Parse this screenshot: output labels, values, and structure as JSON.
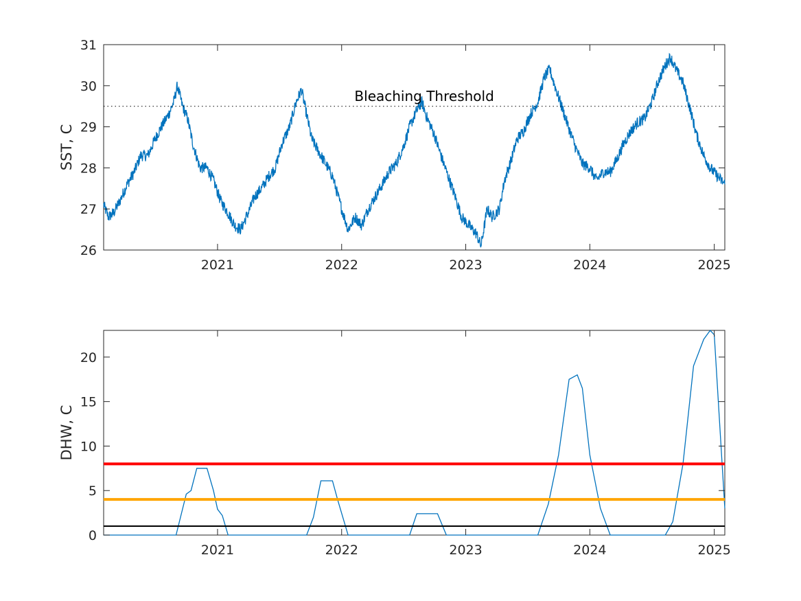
{
  "chart_data": [
    {
      "type": "line",
      "ylabel": "SST, C",
      "xlim": [
        "2020-02-01",
        "2025-02-01"
      ],
      "ylim": [
        26,
        31
      ],
      "xticks": [
        {
          "date": "2021-01-01",
          "label": "2021"
        },
        {
          "date": "2022-01-01",
          "label": "2022"
        },
        {
          "date": "2023-01-01",
          "label": "2023"
        },
        {
          "date": "2024-01-01",
          "label": "2024"
        },
        {
          "date": "2025-01-01",
          "label": "2025"
        }
      ],
      "yticks": [
        26,
        27,
        28,
        29,
        30,
        31
      ],
      "grid": false,
      "series": [
        {
          "color": "#0072BD",
          "points": [
            [
              "2020-02-01",
              27.1
            ],
            [
              "2020-02-15",
              26.8
            ],
            [
              "2020-03-01",
              26.9
            ],
            [
              "2020-03-20",
              27.2
            ],
            [
              "2020-04-10",
              27.6
            ],
            [
              "2020-05-01",
              27.9
            ],
            [
              "2020-05-20",
              28.3
            ],
            [
              "2020-06-10",
              28.3
            ],
            [
              "2020-07-01",
              28.7
            ],
            [
              "2020-07-20",
              29.0
            ],
            [
              "2020-08-10",
              29.3
            ],
            [
              "2020-08-25",
              29.6
            ],
            [
              "2020-09-05",
              30.0
            ],
            [
              "2020-09-20",
              29.5
            ],
            [
              "2020-10-05",
              29.2
            ],
            [
              "2020-10-20",
              28.6
            ],
            [
              "2020-11-10",
              28.0
            ],
            [
              "2020-12-01",
              28.0
            ],
            [
              "2020-12-20",
              27.7
            ],
            [
              "2021-01-10",
              27.2
            ],
            [
              "2021-02-01",
              26.9
            ],
            [
              "2021-02-20",
              26.6
            ],
            [
              "2021-03-10",
              26.5
            ],
            [
              "2021-04-01",
              26.9
            ],
            [
              "2021-04-20",
              27.3
            ],
            [
              "2021-05-10",
              27.5
            ],
            [
              "2021-06-01",
              27.8
            ],
            [
              "2021-06-20",
              28.0
            ],
            [
              "2021-07-10",
              28.6
            ],
            [
              "2021-08-01",
              29.0
            ],
            [
              "2021-08-20",
              29.6
            ],
            [
              "2021-09-05",
              29.9
            ],
            [
              "2021-09-20",
              29.3
            ],
            [
              "2021-10-05",
              28.7
            ],
            [
              "2021-10-25",
              28.4
            ],
            [
              "2021-11-15",
              28.1
            ],
            [
              "2021-12-05",
              27.8
            ],
            [
              "2022-01-01",
              27.0
            ],
            [
              "2022-01-20",
              26.5
            ],
            [
              "2022-02-10",
              26.8
            ],
            [
              "2022-03-01",
              26.6
            ],
            [
              "2022-03-20",
              27.0
            ],
            [
              "2022-04-10",
              27.3
            ],
            [
              "2022-05-01",
              27.6
            ],
            [
              "2022-05-20",
              27.9
            ],
            [
              "2022-06-10",
              28.1
            ],
            [
              "2022-07-01",
              28.5
            ],
            [
              "2022-07-20",
              29.0
            ],
            [
              "2022-08-10",
              29.4
            ],
            [
              "2022-08-25",
              29.6
            ],
            [
              "2022-09-10",
              29.2
            ],
            [
              "2022-10-01",
              28.8
            ],
            [
              "2022-10-20",
              28.3
            ],
            [
              "2022-11-10",
              27.8
            ],
            [
              "2022-12-01",
              27.3
            ],
            [
              "2022-12-20",
              26.8
            ],
            [
              "2023-01-10",
              26.6
            ],
            [
              "2023-02-01",
              26.4
            ],
            [
              "2023-02-15",
              26.1
            ],
            [
              "2023-03-05",
              27.0
            ],
            [
              "2023-03-20",
              26.8
            ],
            [
              "2023-04-10",
              27.0
            ],
            [
              "2023-04-25",
              27.7
            ],
            [
              "2023-05-15",
              28.2
            ],
            [
              "2023-06-01",
              28.7
            ],
            [
              "2023-06-20",
              28.9
            ],
            [
              "2023-07-10",
              29.3
            ],
            [
              "2023-08-01",
              29.6
            ],
            [
              "2023-08-20",
              30.2
            ],
            [
              "2023-09-05",
              30.4
            ],
            [
              "2023-09-20",
              30.0
            ],
            [
              "2023-10-10",
              29.5
            ],
            [
              "2023-10-30",
              29.0
            ],
            [
              "2023-11-20",
              28.5
            ],
            [
              "2023-12-10",
              28.1
            ],
            [
              "2024-01-01",
              28.0
            ],
            [
              "2024-01-20",
              27.7
            ],
            [
              "2024-02-10",
              27.9
            ],
            [
              "2024-03-01",
              27.9
            ],
            [
              "2024-03-20",
              28.2
            ],
            [
              "2024-04-10",
              28.6
            ],
            [
              "2024-05-01",
              28.9
            ],
            [
              "2024-05-20",
              29.1
            ],
            [
              "2024-06-10",
              29.2
            ],
            [
              "2024-07-01",
              29.6
            ],
            [
              "2024-07-20",
              30.1
            ],
            [
              "2024-08-10",
              30.5
            ],
            [
              "2024-08-25",
              30.7
            ],
            [
              "2024-09-10",
              30.4
            ],
            [
              "2024-09-30",
              30.1
            ],
            [
              "2024-10-20",
              29.5
            ],
            [
              "2024-11-10",
              28.8
            ],
            [
              "2024-12-01",
              28.3
            ],
            [
              "2024-12-20",
              28.0
            ],
            [
              "2025-01-10",
              27.8
            ],
            [
              "2025-02-01",
              27.6
            ]
          ]
        },
        {
          "color": "#000000",
          "style": "dotted",
          "points": [
            [
              "2020-02-01",
              29.5
            ],
            [
              "2025-02-01",
              29.5
            ]
          ]
        }
      ],
      "annotations": [
        {
          "text": "Bleaching Threshold",
          "x": "2022-09-01",
          "y": 29.75
        }
      ]
    },
    {
      "type": "line",
      "ylabel": "DHW, C",
      "xlim": [
        "2020-02-01",
        "2025-02-01"
      ],
      "ylim": [
        0,
        23
      ],
      "xticks": [
        {
          "date": "2021-01-01",
          "label": "2021"
        },
        {
          "date": "2022-01-01",
          "label": "2022"
        },
        {
          "date": "2023-01-01",
          "label": "2023"
        },
        {
          "date": "2024-01-01",
          "label": "2024"
        },
        {
          "date": "2025-01-01",
          "label": "2025"
        }
      ],
      "yticks": [
        0,
        5,
        10,
        15,
        20
      ],
      "grid": false,
      "series": [
        {
          "color": "#0072BD",
          "points": [
            [
              "2020-02-01",
              0
            ],
            [
              "2020-09-01",
              0
            ],
            [
              "2020-10-01",
              4.6
            ],
            [
              "2020-10-15",
              5.0
            ],
            [
              "2020-11-01",
              7.5
            ],
            [
              "2020-12-01",
              7.5
            ],
            [
              "2020-12-20",
              5.0
            ],
            [
              "2021-01-01",
              2.9
            ],
            [
              "2021-01-15",
              2.2
            ],
            [
              "2021-02-01",
              0
            ],
            [
              "2021-09-20",
              0
            ],
            [
              "2021-10-10",
              2.0
            ],
            [
              "2021-11-01",
              6.1
            ],
            [
              "2021-12-05",
              6.1
            ],
            [
              "2021-12-20",
              4.0
            ],
            [
              "2022-01-20",
              0
            ],
            [
              "2022-07-20",
              0
            ],
            [
              "2022-08-10",
              2.4
            ],
            [
              "2022-10-10",
              2.4
            ],
            [
              "2022-11-05",
              0
            ],
            [
              "2023-08-01",
              0
            ],
            [
              "2023-09-01",
              3.5
            ],
            [
              "2023-10-01",
              9.0
            ],
            [
              "2023-11-01",
              17.5
            ],
            [
              "2023-11-25",
              18.0
            ],
            [
              "2023-12-10",
              16.5
            ],
            [
              "2024-01-01",
              9.0
            ],
            [
              "2024-02-01",
              3.0
            ],
            [
              "2024-03-01",
              0
            ],
            [
              "2024-08-10",
              0
            ],
            [
              "2024-09-01",
              1.5
            ],
            [
              "2024-10-01",
              8.0
            ],
            [
              "2024-11-01",
              19.0
            ],
            [
              "2024-12-01",
              22.0
            ],
            [
              "2024-12-20",
              23.0
            ],
            [
              "2025-01-01",
              22.5
            ],
            [
              "2025-02-01",
              3.0
            ]
          ]
        },
        {
          "color": "#FF0000",
          "points": [
            [
              "2020-02-01",
              8
            ],
            [
              "2025-02-01",
              8
            ]
          ]
        },
        {
          "color": "#FFA500",
          "points": [
            [
              "2020-02-01",
              4
            ],
            [
              "2025-02-01",
              4
            ]
          ]
        },
        {
          "color": "#000000",
          "points": [
            [
              "2020-02-01",
              1
            ],
            [
              "2025-02-01",
              1
            ]
          ]
        }
      ]
    }
  ]
}
